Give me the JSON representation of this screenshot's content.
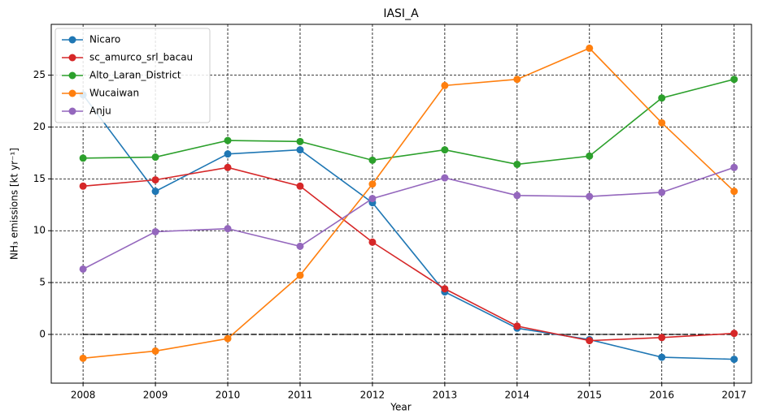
{
  "chart_data": {
    "type": "line",
    "title": "IASI_A",
    "xlabel": "Year",
    "ylabel": "NH₃ emissions [kt yr⁻¹]",
    "x": [
      2008,
      2009,
      2010,
      2011,
      2012,
      2013,
      2014,
      2015,
      2016,
      2017
    ],
    "series": [
      {
        "name": "Nicaro",
        "color": "#1f77b4",
        "values": [
          23.1,
          13.8,
          17.4,
          17.8,
          12.7,
          4.1,
          0.6,
          -0.5,
          -2.2,
          -2.4
        ]
      },
      {
        "name": "sc_amurco_srl_bacau",
        "color": "#d62728",
        "values": [
          14.3,
          14.9,
          16.1,
          14.3,
          8.9,
          4.4,
          0.8,
          -0.6,
          -0.3,
          0.1
        ]
      },
      {
        "name": "Alto_Laran_District",
        "color": "#2ca02c",
        "values": [
          17.0,
          17.1,
          18.7,
          18.6,
          16.8,
          17.8,
          16.4,
          17.2,
          22.8,
          24.6
        ]
      },
      {
        "name": "Wucaiwan",
        "color": "#ff7f0e",
        "values": [
          -2.3,
          -1.6,
          -0.4,
          5.7,
          14.5,
          24.0,
          24.6,
          27.6,
          20.4,
          13.8
        ]
      },
      {
        "name": "Anju",
        "color": "#9467bd",
        "values": [
          6.3,
          9.9,
          10.2,
          8.5,
          13.1,
          15.1,
          13.4,
          13.3,
          13.7,
          16.1
        ]
      }
    ],
    "xlim": [
      2007.56,
      2017.24
    ],
    "xticks": [
      2008,
      2009,
      2010,
      2011,
      2012,
      2013,
      2014,
      2015,
      2016,
      2017
    ],
    "ylim": [
      -4.7,
      29.9
    ],
    "yticks": [
      0,
      5,
      10,
      15,
      20,
      25
    ],
    "hline": 0,
    "grid": true,
    "legend": "upper left"
  }
}
